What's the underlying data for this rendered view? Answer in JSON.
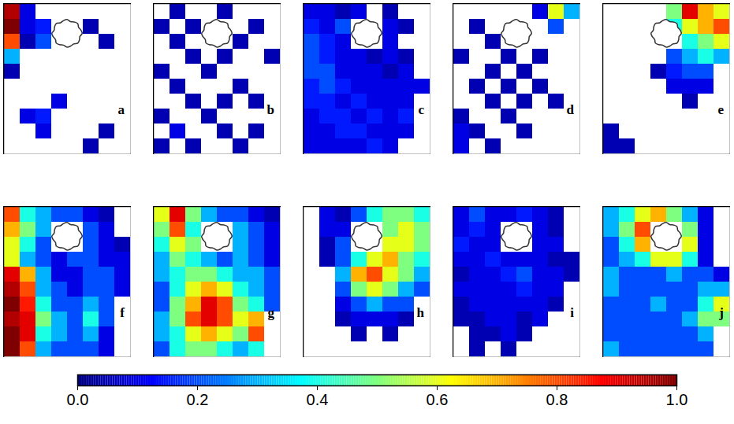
{
  "chart_data": {
    "type": "heatmap",
    "panels": [
      {
        "label": "a",
        "cells": [
          [
            0.95,
            0.1,
            null,
            null,
            null,
            null,
            null,
            null
          ],
          [
            1.0,
            0.1,
            0.15,
            null,
            null,
            0.05,
            null,
            null
          ],
          [
            0.8,
            0.05,
            0.2,
            null,
            null,
            null,
            0.05,
            null
          ],
          [
            0.3,
            null,
            null,
            null,
            null,
            null,
            null,
            null
          ],
          [
            0.05,
            null,
            null,
            null,
            null,
            null,
            null,
            null
          ],
          [
            null,
            null,
            null,
            null,
            null,
            null,
            null,
            null
          ],
          [
            null,
            null,
            null,
            0.1,
            null,
            null,
            null,
            null
          ],
          [
            null,
            0.1,
            0.15,
            null,
            null,
            null,
            null,
            null
          ],
          [
            null,
            null,
            0.1,
            null,
            null,
            null,
            0.05,
            null
          ],
          [
            null,
            null,
            null,
            null,
            null,
            0.05,
            null,
            null
          ]
        ]
      },
      {
        "label": "b",
        "cells": [
          [
            null,
            0.05,
            null,
            null,
            0.05,
            null,
            null,
            null
          ],
          [
            0.05,
            null,
            0.05,
            null,
            null,
            null,
            0.05,
            null
          ],
          [
            null,
            0.05,
            null,
            null,
            null,
            0.05,
            null,
            null
          ],
          [
            null,
            null,
            0.05,
            null,
            0.05,
            null,
            null,
            0.05
          ],
          [
            0.05,
            null,
            null,
            0.05,
            null,
            null,
            null,
            null
          ],
          [
            null,
            0.05,
            null,
            null,
            null,
            0.05,
            null,
            null
          ],
          [
            null,
            null,
            0.05,
            null,
            0.05,
            null,
            0.05,
            null
          ],
          [
            0.05,
            null,
            null,
            0.05,
            null,
            null,
            null,
            null
          ],
          [
            null,
            0.1,
            null,
            null,
            0.05,
            null,
            0.05,
            null
          ],
          [
            0.05,
            null,
            0.05,
            null,
            null,
            0.05,
            null,
            null
          ]
        ]
      },
      {
        "label": "c",
        "cells": [
          [
            0.1,
            0.1,
            0.05,
            0.1,
            null,
            0.05,
            null,
            null
          ],
          [
            0.15,
            0.1,
            0.2,
            null,
            null,
            0.1,
            0.05,
            null
          ],
          [
            0.2,
            0.15,
            0.1,
            null,
            null,
            0.1,
            null,
            null
          ],
          [
            0.2,
            0.15,
            0.1,
            0.1,
            0.05,
            0.1,
            0.05,
            null
          ],
          [
            0.2,
            0.2,
            0.1,
            0.1,
            0.1,
            0.05,
            0.1,
            null
          ],
          [
            0.15,
            0.2,
            0.15,
            0.1,
            0.1,
            0.1,
            0.1,
            0.1
          ],
          [
            0.15,
            0.15,
            0.1,
            0.15,
            0.1,
            0.1,
            0.1,
            null
          ],
          [
            0.1,
            0.15,
            0.15,
            0.1,
            0.15,
            0.1,
            0.15,
            null
          ],
          [
            0.1,
            0.1,
            0.15,
            0.15,
            0.1,
            0.1,
            0.1,
            null
          ],
          [
            0.1,
            0.1,
            0.1,
            0.1,
            0.15,
            0.1,
            null,
            null
          ]
        ]
      },
      {
        "label": "d",
        "cells": [
          [
            null,
            null,
            null,
            null,
            null,
            0.1,
            0.6,
            0.3
          ],
          [
            null,
            0.05,
            null,
            null,
            null,
            null,
            0.2,
            null
          ],
          [
            null,
            null,
            0.05,
            null,
            null,
            null,
            null,
            null
          ],
          [
            0.05,
            null,
            null,
            0.05,
            null,
            0.05,
            null,
            null
          ],
          [
            null,
            null,
            0.05,
            null,
            0.05,
            null,
            null,
            null
          ],
          [
            null,
            0.05,
            null,
            0.05,
            null,
            0.05,
            null,
            null
          ],
          [
            null,
            null,
            0.05,
            null,
            0.05,
            null,
            0.05,
            null
          ],
          [
            0.05,
            null,
            null,
            0.05,
            null,
            null,
            null,
            null
          ],
          [
            0.1,
            0.05,
            null,
            null,
            0.05,
            null,
            null,
            null
          ],
          [
            0.1,
            null,
            0.05,
            null,
            null,
            null,
            null,
            null
          ]
        ]
      },
      {
        "label": "e",
        "cells": [
          [
            null,
            null,
            null,
            null,
            0.5,
            0.9,
            0.7,
            0.6
          ],
          [
            null,
            null,
            null,
            null,
            0.4,
            0.6,
            0.7,
            0.8
          ],
          [
            null,
            null,
            null,
            null,
            null,
            0.4,
            0.5,
            0.6
          ],
          [
            null,
            null,
            null,
            null,
            0.2,
            0.3,
            0.4,
            0.3
          ],
          [
            null,
            null,
            null,
            0.05,
            0.15,
            0.2,
            0.2,
            null
          ],
          [
            null,
            null,
            null,
            null,
            0.1,
            0.1,
            0.1,
            null
          ],
          [
            null,
            null,
            null,
            null,
            null,
            0.05,
            null,
            null
          ],
          [
            null,
            null,
            null,
            null,
            null,
            null,
            null,
            null
          ],
          [
            0.05,
            null,
            null,
            null,
            null,
            null,
            null,
            null
          ],
          [
            0.05,
            0.05,
            null,
            null,
            null,
            null,
            null,
            null
          ]
        ]
      },
      {
        "label": "f",
        "cells": [
          [
            0.8,
            0.4,
            0.3,
            0.2,
            0.2,
            0.1,
            0.05,
            null
          ],
          [
            0.7,
            0.5,
            0.3,
            null,
            null,
            0.2,
            0.1,
            null
          ],
          [
            0.6,
            0.4,
            0.2,
            null,
            null,
            0.2,
            0.1,
            0.05
          ],
          [
            0.6,
            0.3,
            0.2,
            0.1,
            0.2,
            0.2,
            0.1,
            0.1
          ],
          [
            0.9,
            0.7,
            0.3,
            0.1,
            0.1,
            0.2,
            0.2,
            0.1
          ],
          [
            0.95,
            0.8,
            0.3,
            0.2,
            0.1,
            0.2,
            0.2,
            0.1
          ],
          [
            1.0,
            0.85,
            0.4,
            0.2,
            0.2,
            0.3,
            0.2,
            null
          ],
          [
            0.95,
            0.9,
            0.5,
            0.3,
            0.2,
            0.4,
            0.2,
            null
          ],
          [
            1.0,
            0.9,
            0.4,
            0.3,
            0.2,
            0.3,
            0.1,
            null
          ],
          [
            1.0,
            0.8,
            0.3,
            0.2,
            0.2,
            0.2,
            0.1,
            null
          ]
        ]
      },
      {
        "label": "g",
        "cells": [
          [
            0.6,
            0.9,
            0.5,
            0.3,
            0.2,
            0.2,
            0.1,
            0.05
          ],
          [
            0.5,
            0.8,
            0.4,
            null,
            null,
            0.3,
            0.2,
            0.1
          ],
          [
            0.4,
            0.6,
            0.5,
            null,
            null,
            0.3,
            0.2,
            0.1
          ],
          [
            0.3,
            0.5,
            0.4,
            0.3,
            0.2,
            0.3,
            0.2,
            0.1
          ],
          [
            0.3,
            0.4,
            0.5,
            0.5,
            0.4,
            0.3,
            0.3,
            0.2
          ],
          [
            0.2,
            0.4,
            0.6,
            0.7,
            0.6,
            0.4,
            0.3,
            0.2
          ],
          [
            0.2,
            0.5,
            0.7,
            0.9,
            0.8,
            0.5,
            0.4,
            0.2
          ],
          [
            0.3,
            0.5,
            0.8,
            0.9,
            0.8,
            0.6,
            0.7,
            null
          ],
          [
            0.3,
            0.4,
            0.6,
            0.7,
            0.6,
            0.5,
            0.8,
            null
          ],
          [
            0.2,
            0.4,
            0.5,
            0.5,
            0.4,
            0.3,
            0.4,
            null
          ]
        ]
      },
      {
        "label": "h",
        "cells": [
          [
            null,
            0.1,
            0.05,
            0.2,
            0.4,
            0.5,
            0.5,
            0.4
          ],
          [
            null,
            0.1,
            0.1,
            null,
            null,
            0.5,
            0.6,
            0.5
          ],
          [
            null,
            0.05,
            0.2,
            null,
            null,
            0.6,
            0.6,
            0.5
          ],
          [
            null,
            0.05,
            0.2,
            0.4,
            0.6,
            0.7,
            0.5,
            0.4
          ],
          [
            null,
            null,
            0.3,
            0.7,
            0.8,
            0.6,
            0.5,
            0.3
          ],
          [
            null,
            null,
            0.2,
            0.5,
            0.6,
            0.5,
            0.3,
            0.2
          ],
          [
            null,
            null,
            0.1,
            0.2,
            0.3,
            0.2,
            0.2,
            null
          ],
          [
            null,
            null,
            0.05,
            0.1,
            0.1,
            0.1,
            0.05,
            null
          ],
          [
            null,
            null,
            null,
            0.05,
            null,
            0.05,
            null,
            null
          ],
          [
            null,
            null,
            null,
            null,
            null,
            null,
            null,
            null
          ]
        ]
      },
      {
        "label": "i",
        "cells": [
          [
            0.1,
            0.2,
            0.1,
            0.1,
            0.15,
            0.1,
            0.05,
            null
          ],
          [
            0.1,
            0.15,
            0.1,
            null,
            null,
            0.1,
            0.05,
            null
          ],
          [
            0.15,
            0.1,
            0.1,
            null,
            null,
            0.1,
            0.1,
            null
          ],
          [
            0.1,
            0.1,
            0.15,
            0.1,
            0.1,
            0.1,
            0.05,
            0.05
          ],
          [
            0.05,
            0.1,
            0.1,
            0.15,
            0.2,
            0.1,
            0.1,
            0.05
          ],
          [
            0.1,
            0.1,
            0.1,
            0.1,
            0.15,
            0.1,
            0.1,
            null
          ],
          [
            0.05,
            0.1,
            0.1,
            0.1,
            0.1,
            0.1,
            0.05,
            null
          ],
          [
            0.05,
            0.05,
            0.1,
            0.1,
            0.05,
            0.1,
            null,
            null
          ],
          [
            null,
            0.05,
            0.05,
            0.1,
            0.05,
            null,
            null,
            null
          ],
          [
            null,
            0.05,
            null,
            0.05,
            null,
            null,
            null,
            null
          ]
        ]
      },
      {
        "label": "j",
        "cells": [
          [
            0.3,
            0.4,
            0.6,
            0.7,
            0.5,
            0.3,
            0.1,
            null
          ],
          [
            0.3,
            0.5,
            0.8,
            null,
            null,
            0.5,
            0.1,
            null
          ],
          [
            0.2,
            0.4,
            0.7,
            null,
            null,
            0.6,
            0.1,
            null
          ],
          [
            0.2,
            0.3,
            0.4,
            0.6,
            0.6,
            0.4,
            0.1,
            null
          ],
          [
            0.3,
            0.2,
            0.2,
            0.2,
            0.3,
            0.2,
            0.2,
            0.1
          ],
          [
            0.3,
            0.2,
            0.2,
            0.2,
            0.2,
            0.2,
            0.3,
            0.3
          ],
          [
            0.2,
            0.2,
            0.2,
            0.3,
            0.2,
            0.2,
            0.4,
            0.6
          ],
          [
            0.2,
            0.2,
            0.2,
            0.2,
            0.2,
            0.3,
            0.5,
            0.5
          ],
          [
            0.2,
            0.2,
            0.2,
            0.2,
            0.2,
            0.2,
            0.3,
            null
          ],
          [
            0.3,
            0.2,
            0.2,
            0.2,
            0.2,
            0.2,
            0.2,
            null
          ]
        ]
      }
    ],
    "colorbar": {
      "range": [
        0,
        1
      ],
      "ticks": [
        {
          "value": 0,
          "label": "0.0"
        },
        {
          "value": 0.2,
          "label": "0.2"
        },
        {
          "value": 0.4,
          "label": "0.4"
        },
        {
          "value": 0.6,
          "label": "0.6"
        },
        {
          "value": 0.8,
          "label": "0.8"
        },
        {
          "value": 1,
          "label": "1.0"
        }
      ]
    }
  }
}
